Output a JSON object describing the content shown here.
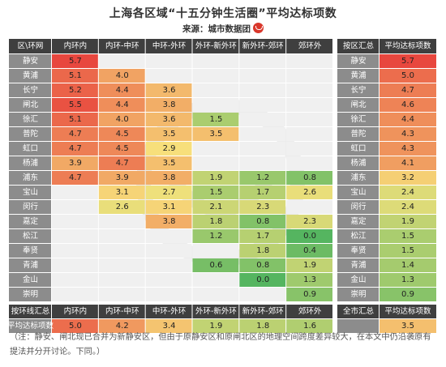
{
  "title": "上海各区域“十五分钟生活圈”平均达标项数",
  "source": "来源：城市数据团",
  "logo_icon": "city-data-team-logo-icon",
  "note": "（注：静安、闸北现已合并为新静安区，但由于原静安区和原闸北区的地理空间跨度差异较大，在本文中仍沿袭原有提法并分开讨论。下同。）",
  "chart_data": {
    "type": "heatmap",
    "corner_label": "区\\环网",
    "columns": [
      "内环内",
      "内环-中环",
      "中环-外环",
      "外环-新外环",
      "新外环-郊环",
      "郊环外"
    ],
    "rows": [
      "静安",
      "黄浦",
      "长宁",
      "闸北",
      "徐汇",
      "普陀",
      "虹口",
      "杨浦",
      "浦东",
      "宝山",
      "闵行",
      "嘉定",
      "松江",
      "奉贤",
      "青浦",
      "金山",
      "崇明"
    ],
    "values": [
      [
        5.7,
        null,
        null,
        null,
        null,
        null
      ],
      [
        5.1,
        4.0,
        null,
        null,
        null,
        null
      ],
      [
        5.2,
        4.4,
        3.6,
        null,
        null,
        null
      ],
      [
        5.5,
        4.4,
        3.8,
        null,
        null,
        null
      ],
      [
        5.1,
        4.0,
        3.6,
        1.5,
        null,
        null
      ],
      [
        4.7,
        4.5,
        3.5,
        3.5,
        null,
        null
      ],
      [
        4.7,
        4.5,
        2.9,
        null,
        null,
        null
      ],
      [
        3.9,
        4.7,
        3.5,
        null,
        null,
        null
      ],
      [
        4.7,
        3.9,
        3.8,
        1.9,
        1.2,
        0.8
      ],
      [
        null,
        3.1,
        2.7,
        1.5,
        1.7,
        2.6
      ],
      [
        null,
        2.6,
        3.1,
        2.1,
        2.3,
        null
      ],
      [
        null,
        null,
        3.8,
        1.8,
        0.8,
        2.3
      ],
      [
        null,
        null,
        null,
        1.2,
        1.7,
        0.0
      ],
      [
        null,
        null,
        null,
        null,
        1.8,
        0.4
      ],
      [
        null,
        null,
        null,
        0.6,
        0.8,
        1.9
      ],
      [
        null,
        null,
        null,
        null,
        0.0,
        1.3
      ],
      [
        null,
        null,
        null,
        null,
        null,
        0.9
      ]
    ],
    "side_header": "按区汇总",
    "side_value_header": "平均达标项数",
    "side_values": [
      5.7,
      5.0,
      4.7,
      4.6,
      4.4,
      4.3,
      4.3,
      4.1,
      3.2,
      2.4,
      2.4,
      1.9,
      1.5,
      1.5,
      1.4,
      1.3,
      0.9
    ],
    "ring_summary_header": "按环线汇总",
    "ring_summary_label": "平均达标项数",
    "ring_summary_values": [
      5.0,
      4.2,
      3.4,
      1.9,
      1.8,
      1.6
    ],
    "city_summary_header": "全市汇总",
    "city_summary_value": 3.5,
    "watermark_icon": "city-data-team-watermark-icon",
    "colors": {
      "header_bg": "#3f3f3f",
      "header_text": "#ffffff",
      "label_bg": "#8c8c8c",
      "label_text": "#ffffff",
      "empty_bg": "#f0f0f0",
      "scale_low": "#55b560",
      "scale_mid": "#f7e27c",
      "scale_high": "#e8473e"
    }
  }
}
